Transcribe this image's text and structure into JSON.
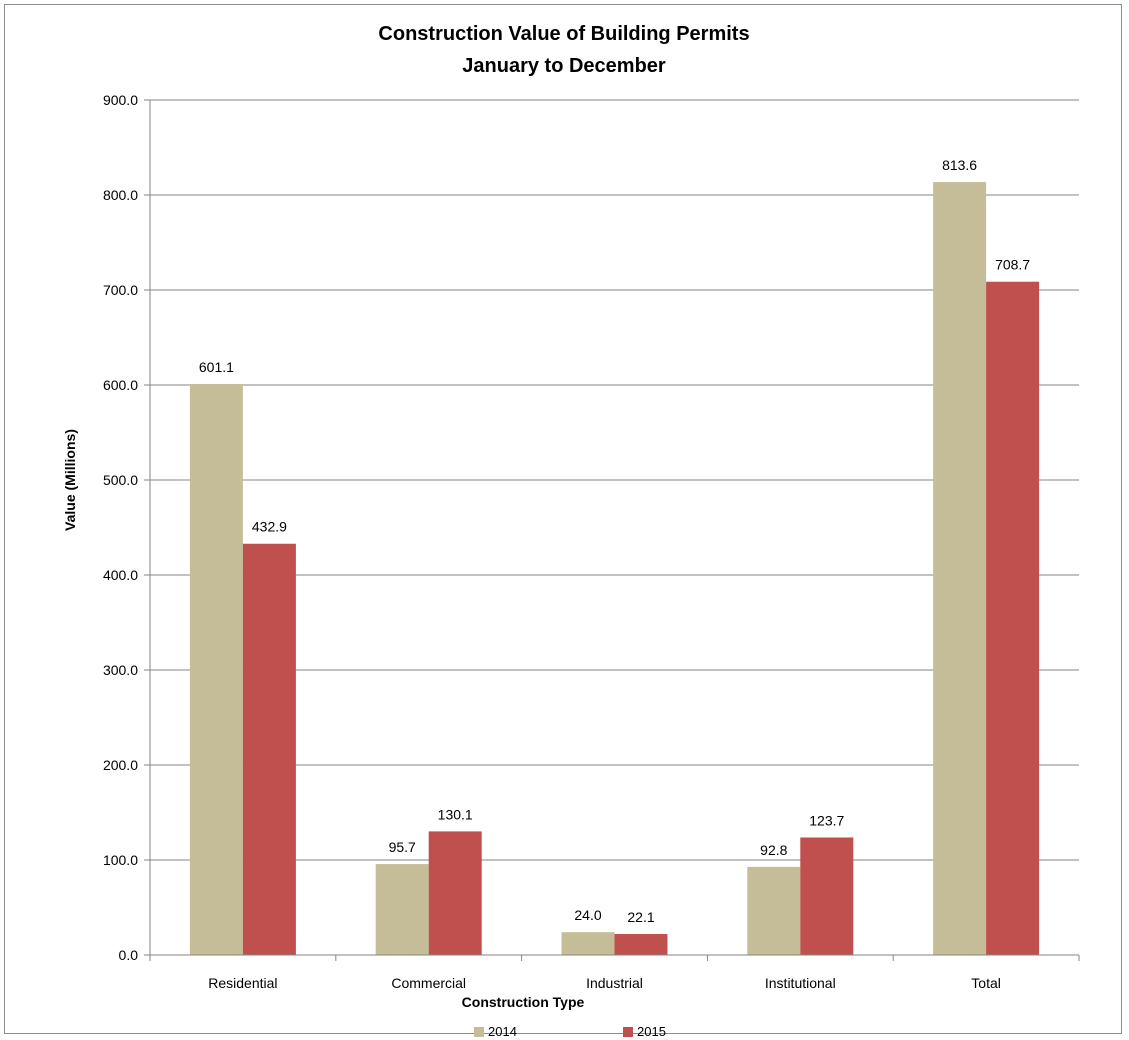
{
  "chart_data": {
    "type": "bar",
    "title": "Construction Value of Building Permits",
    "subtitle": "January to December",
    "xlabel": "Construction Type",
    "ylabel": "Value (Millions)",
    "categories": [
      "Residential",
      "Commercial",
      "Industrial",
      "Institutional",
      "Total"
    ],
    "series": [
      {
        "name": "2014",
        "color": "#c4bd97",
        "values": [
          601.1,
          95.7,
          24.0,
          92.8,
          813.6
        ]
      },
      {
        "name": "2015",
        "color": "#c0504d",
        "values": [
          432.9,
          130.1,
          22.1,
          123.7,
          708.7
        ]
      }
    ],
    "ylim": [
      0,
      900
    ],
    "yticks": [
      "0.0",
      "100.0",
      "200.0",
      "300.0",
      "400.0",
      "500.0",
      "600.0",
      "700.0",
      "800.0",
      "900.0"
    ],
    "grid": true,
    "legend_position": "bottom"
  }
}
